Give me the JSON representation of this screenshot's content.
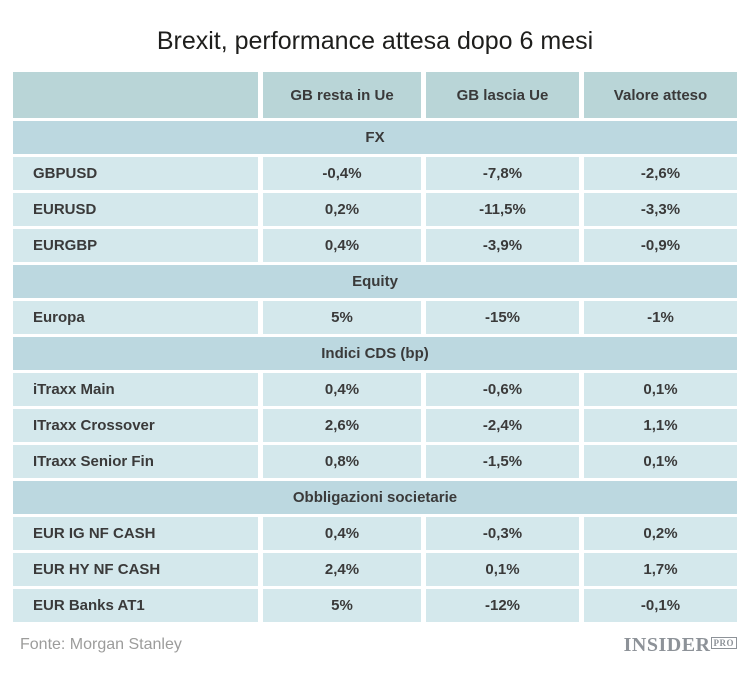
{
  "chart_data": {
    "type": "table",
    "title": "Brexit, performance attesa dopo 6 mesi",
    "columns": [
      "",
      "GB resta in Ue",
      "GB lascia Ue",
      "Valore atteso"
    ],
    "sections": [
      {
        "header": "FX",
        "rows": [
          [
            "GBPUSD",
            "-0,4%",
            "-7,8%",
            "-2,6%"
          ],
          [
            "EURUSD",
            "0,2%",
            "-11,5%",
            "-3,3%"
          ],
          [
            "EURGBP",
            "0,4%",
            "-3,9%",
            "-0,9%"
          ]
        ]
      },
      {
        "header": "Equity",
        "rows": [
          [
            "Europa",
            "5%",
            "-15%",
            "-1%"
          ]
        ]
      },
      {
        "header": "Indici CDS (bp)",
        "rows": [
          [
            "iTraxx Main",
            "0,4%",
            "-0,6%",
            "0,1%"
          ],
          [
            "ITraxx Crossover",
            "2,6%",
            "-2,4%",
            "1,1%"
          ],
          [
            "ITraxx Senior Fin",
            "0,8%",
            "-1,5%",
            "0,1%"
          ]
        ]
      },
      {
        "header": "Obbligazioni societarie",
        "rows": [
          [
            "EUR IG NF CASH",
            "0,4%",
            "-0,3%",
            "0,2%"
          ],
          [
            "EUR HY NF CASH",
            "2,4%",
            "0,1%",
            "1,7%"
          ],
          [
            "EUR Banks AT1",
            "5%",
            "-12%",
            "-0,1%"
          ]
        ]
      }
    ],
    "source": "Fonte: Morgan Stanley",
    "layout": "sectioned table, values centered, labels left-aligned"
  },
  "footer": {
    "source": "Fonte: Morgan Stanley",
    "logo_name": "INSIDER",
    "logo_badge": "PRO"
  },
  "colors": {
    "column_header_bg": "#b9d5d7",
    "section_header_bg": "#bcd8e0",
    "data_row_bg": "#d4e8ec",
    "text": "#3a3a3a",
    "title_text": "#1e1e1c",
    "footer_text": "#9c9c9b",
    "logo": "#8d9298",
    "background": "#ffffff"
  }
}
